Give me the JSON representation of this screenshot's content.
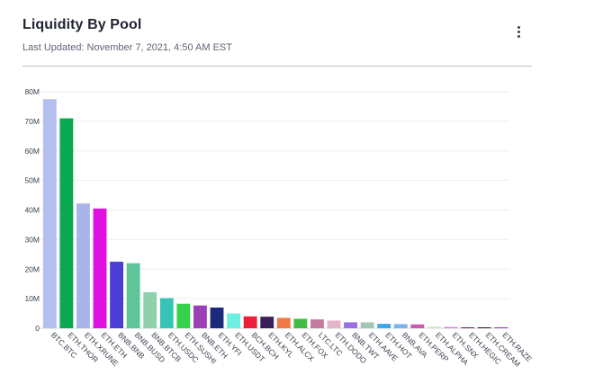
{
  "header": {
    "title": "Liquidity By Pool",
    "last_updated": "Last Updated: November 7, 2021, 4:50 AM EST",
    "menu_icon": "kebab-menu-icon"
  },
  "chart_data": {
    "type": "bar",
    "title": "",
    "xlabel": "",
    "ylabel": "",
    "ylim": [
      0,
      80000000
    ],
    "yticks": [
      {
        "value": 0,
        "label": "0"
      },
      {
        "value": 10000000,
        "label": "10M"
      },
      {
        "value": 20000000,
        "label": "20M"
      },
      {
        "value": 30000000,
        "label": "30M"
      },
      {
        "value": 40000000,
        "label": "40M"
      },
      {
        "value": 50000000,
        "label": "50M"
      },
      {
        "value": 60000000,
        "label": "60M"
      },
      {
        "value": 70000000,
        "label": "70M"
      },
      {
        "value": 80000000,
        "label": "80M"
      }
    ],
    "grid": true,
    "legend": "none",
    "categories": [
      "BTC.BTC",
      "ETH.THOR",
      "ETH.XRUNE",
      "ETH.ETH",
      "BNB.BNB",
      "BNB.BUSD",
      "BNB.BTCB",
      "ETH.USDC",
      "ETH.SUSHI",
      "BNB.ETH",
      "ETH.YFI",
      "ETH.USDT",
      "BCH.BCH",
      "ETH.KYL",
      "ETH.ALCX",
      "ETH.FOX",
      "LTC.LTC",
      "ETH.DODO",
      "BNB.TWT",
      "ETH.AAVE",
      "ETH.HOT",
      "BNB.AVA",
      "ETH.PERP",
      "ETH.ALPHA",
      "ETH.SNX",
      "ETH.HEGIC",
      "ETH.CREAM",
      "ETH.RAZE"
    ],
    "values": [
      77500000,
      71000000,
      42200000,
      40500000,
      22500000,
      22000000,
      12200000,
      10200000,
      8300000,
      7700000,
      7000000,
      5000000,
      4000000,
      3900000,
      3500000,
      3200000,
      3000000,
      2600000,
      2000000,
      2000000,
      1500000,
      1400000,
      1300000,
      500000,
      400000,
      300000,
      300000,
      300000
    ],
    "colors": [
      "#b4bff0",
      "#0aa850",
      "#a9b4ea",
      "#e010e0",
      "#4a3ed6",
      "#5ec49a",
      "#8ed1ac",
      "#38c4b4",
      "#36d24c",
      "#9c40b8",
      "#1b2a7c",
      "#6ef0e0",
      "#ee1f3a",
      "#3a1f5a",
      "#f07844",
      "#44bc44",
      "#c47c9e",
      "#e4b4c8",
      "#9a6ee4",
      "#a4c4b4",
      "#3ca8e8",
      "#7cb4e8",
      "#c85ab0",
      "#c8e4b4",
      "#d878d8",
      "#7c1454",
      "#3a1020",
      "#b81ce0"
    ]
  }
}
